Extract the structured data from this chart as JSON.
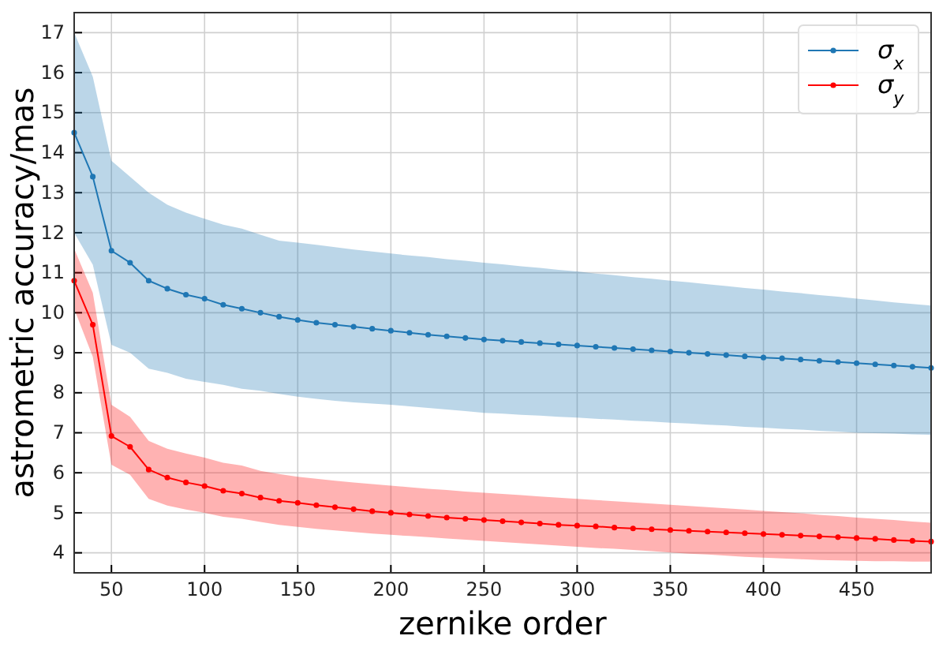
{
  "chart_data": {
    "type": "line",
    "xlabel": "zernike order",
    "ylabel": "astrometric accuracy/mas",
    "x": [
      30,
      40,
      50,
      60,
      70,
      80,
      90,
      100,
      110,
      120,
      130,
      140,
      150,
      160,
      170,
      180,
      190,
      200,
      210,
      220,
      230,
      240,
      250,
      260,
      270,
      280,
      290,
      300,
      310,
      320,
      330,
      340,
      350,
      360,
      370,
      380,
      390,
      400,
      410,
      420,
      430,
      440,
      450,
      460,
      470,
      480,
      490
    ],
    "series": [
      {
        "name": "σ$_{x}$",
        "color": "#1f77b4",
        "values": [
          14.5,
          13.4,
          11.55,
          11.25,
          10.8,
          10.6,
          10.45,
          10.35,
          10.2,
          10.1,
          10.0,
          9.9,
          9.82,
          9.75,
          9.7,
          9.65,
          9.6,
          9.55,
          9.5,
          9.45,
          9.41,
          9.37,
          9.33,
          9.3,
          9.27,
          9.24,
          9.21,
          9.18,
          9.15,
          9.12,
          9.09,
          9.06,
          9.03,
          9.0,
          8.97,
          8.94,
          8.91,
          8.88,
          8.86,
          8.83,
          8.8,
          8.77,
          8.74,
          8.71,
          8.68,
          8.65,
          8.62
        ],
        "upper": [
          17.0,
          15.9,
          13.8,
          13.4,
          13.0,
          12.7,
          12.5,
          12.35,
          12.2,
          12.1,
          11.95,
          11.8,
          11.75,
          11.7,
          11.64,
          11.58,
          11.53,
          11.48,
          11.43,
          11.39,
          11.34,
          11.3,
          11.25,
          11.21,
          11.16,
          11.12,
          11.07,
          11.03,
          10.98,
          10.94,
          10.89,
          10.85,
          10.8,
          10.76,
          10.71,
          10.67,
          10.62,
          10.58,
          10.53,
          10.49,
          10.44,
          10.4,
          10.35,
          10.31,
          10.26,
          10.22,
          10.18
        ],
        "lower": [
          12.0,
          11.2,
          9.2,
          9.0,
          8.6,
          8.5,
          8.35,
          8.27,
          8.2,
          8.1,
          8.05,
          7.97,
          7.9,
          7.85,
          7.8,
          7.76,
          7.73,
          7.7,
          7.66,
          7.62,
          7.58,
          7.54,
          7.5,
          7.48,
          7.45,
          7.43,
          7.4,
          7.38,
          7.35,
          7.33,
          7.3,
          7.28,
          7.25,
          7.23,
          7.2,
          7.18,
          7.15,
          7.13,
          7.1,
          7.08,
          7.05,
          7.03,
          7.0,
          6.99,
          6.98,
          6.96,
          6.95
        ]
      },
      {
        "name": "σ$_{y}$",
        "color": "#ff0000",
        "values": [
          10.8,
          9.7,
          6.92,
          6.65,
          6.08,
          5.88,
          5.76,
          5.67,
          5.55,
          5.48,
          5.38,
          5.3,
          5.25,
          5.19,
          5.14,
          5.09,
          5.04,
          5.0,
          4.96,
          4.92,
          4.88,
          4.85,
          4.82,
          4.79,
          4.76,
          4.73,
          4.7,
          4.68,
          4.66,
          4.63,
          4.61,
          4.59,
          4.57,
          4.55,
          4.53,
          4.51,
          4.49,
          4.47,
          4.45,
          4.43,
          4.41,
          4.39,
          4.37,
          4.35,
          4.32,
          4.3,
          4.28
        ],
        "upper": [
          11.6,
          10.5,
          7.7,
          7.4,
          6.8,
          6.6,
          6.48,
          6.38,
          6.25,
          6.18,
          6.05,
          5.97,
          5.9,
          5.85,
          5.8,
          5.76,
          5.72,
          5.68,
          5.64,
          5.6,
          5.57,
          5.53,
          5.5,
          5.47,
          5.44,
          5.41,
          5.38,
          5.35,
          5.32,
          5.29,
          5.26,
          5.23,
          5.2,
          5.17,
          5.14,
          5.11,
          5.08,
          5.05,
          5.02,
          4.99,
          4.95,
          4.92,
          4.88,
          4.85,
          4.82,
          4.78,
          4.75
        ],
        "lower": [
          10.1,
          8.9,
          6.2,
          5.95,
          5.35,
          5.18,
          5.08,
          5.0,
          4.9,
          4.85,
          4.77,
          4.7,
          4.65,
          4.6,
          4.56,
          4.52,
          4.48,
          4.45,
          4.42,
          4.39,
          4.36,
          4.33,
          4.3,
          4.27,
          4.24,
          4.21,
          4.18,
          4.15,
          4.12,
          4.1,
          4.07,
          4.04,
          4.01,
          3.98,
          3.96,
          3.93,
          3.9,
          3.88,
          3.86,
          3.84,
          3.82,
          3.81,
          3.8,
          3.79,
          3.79,
          3.78,
          3.78
        ]
      }
    ],
    "xlim": [
      30,
      490
    ],
    "xticks": [
      50,
      100,
      150,
      200,
      250,
      300,
      350,
      400,
      450
    ],
    "ylim": [
      3.5,
      17.5
    ],
    "yticks": [
      4,
      5,
      6,
      7,
      8,
      9,
      10,
      11,
      12,
      13,
      14,
      15,
      16,
      17
    ],
    "grid": true,
    "legend": "top right",
    "marker": "circle",
    "line_style": "solid"
  }
}
